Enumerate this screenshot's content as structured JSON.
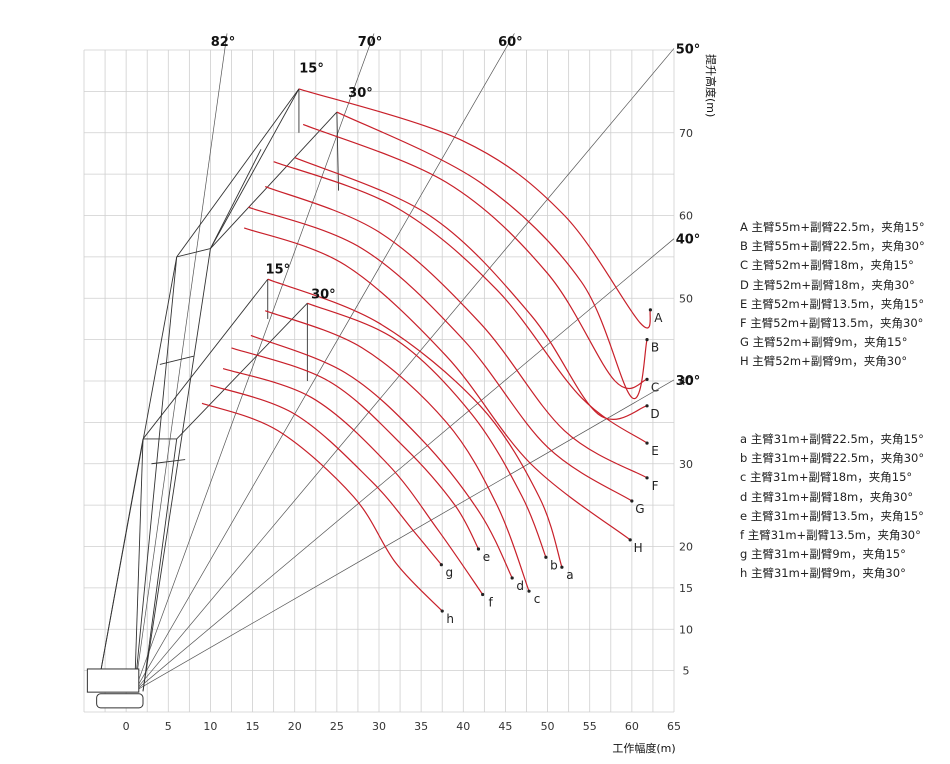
{
  "chart_data": {
    "type": "line",
    "xlabel": "工作幅度(m)",
    "ylabel": "提升高度(m)",
    "xlim": [
      -5,
      65
    ],
    "ylim": [
      0,
      80
    ],
    "x_ticks": [
      0,
      5,
      10,
      15,
      20,
      25,
      30,
      35,
      40,
      45,
      50,
      55,
      60,
      65
    ],
    "y_ticks": [
      5,
      10,
      15,
      20,
      30,
      40,
      50,
      60,
      70
    ],
    "grid": true,
    "pivot": [
      1,
      2.5
    ],
    "boom_angle_lines": [
      {
        "label": "82°",
        "angle": 82
      },
      {
        "label": "70°",
        "angle": 70
      },
      {
        "label": "60°",
        "angle": 60
      },
      {
        "label": "50°",
        "angle": 50
      },
      {
        "label": "40°",
        "angle": 40
      },
      {
        "label": "30°",
        "angle": 30
      }
    ],
    "jib_angle_labels": [
      {
        "label": "15°",
        "x": 22,
        "y": 77.3
      },
      {
        "label": "30°",
        "x": 27.8,
        "y": 74.3
      },
      {
        "label": "15°",
        "x": 18,
        "y": 53
      },
      {
        "label": "30°",
        "x": 23.4,
        "y": 50
      }
    ],
    "series": [
      {
        "name": "A",
        "points": [
          [
            20.5,
            75.3
          ],
          [
            40,
            69
          ],
          [
            52,
            60
          ],
          [
            61,
            47
          ],
          [
            62.2,
            48.6
          ]
        ]
      },
      {
        "name": "B",
        "points": [
          [
            25,
            72.5
          ],
          [
            42,
            64
          ],
          [
            54,
            52
          ],
          [
            60,
            38
          ],
          [
            61.8,
            45
          ]
        ]
      },
      {
        "name": "C",
        "points": [
          [
            21,
            71
          ],
          [
            38,
            64
          ],
          [
            50,
            53
          ],
          [
            58,
            40
          ],
          [
            61.8,
            40.2
          ]
        ]
      },
      {
        "name": "D",
        "points": [
          [
            20,
            67
          ],
          [
            36,
            60
          ],
          [
            48,
            48
          ],
          [
            56,
            36
          ],
          [
            61.8,
            37
          ]
        ]
      },
      {
        "name": "E",
        "points": [
          [
            17.5,
            66.5
          ],
          [
            32,
            61
          ],
          [
            44,
            51
          ],
          [
            54,
            38
          ],
          [
            61.8,
            32.5
          ]
        ]
      },
      {
        "name": "F",
        "points": [
          [
            16.5,
            63.5
          ],
          [
            30,
            58
          ],
          [
            42,
            47
          ],
          [
            52,
            34
          ],
          [
            61.8,
            28.3
          ]
        ]
      },
      {
        "name": "G",
        "points": [
          [
            14.5,
            61
          ],
          [
            28,
            56
          ],
          [
            40,
            45
          ],
          [
            50,
            32
          ],
          [
            60,
            25.5
          ]
        ]
      },
      {
        "name": "H",
        "points": [
          [
            14,
            58.5
          ],
          [
            26,
            54
          ],
          [
            38,
            43
          ],
          [
            48,
            30
          ],
          [
            59.8,
            20.8
          ]
        ]
      },
      {
        "name": "a",
        "points": [
          [
            16.8,
            52.3
          ],
          [
            30,
            47
          ],
          [
            42,
            37
          ],
          [
            49,
            26
          ],
          [
            51.7,
            17.5
          ]
        ]
      },
      {
        "name": "b",
        "points": [
          [
            21.5,
            49.4
          ],
          [
            32,
            45
          ],
          [
            41,
            36
          ],
          [
            47,
            26
          ],
          [
            49.8,
            18.7
          ]
        ]
      },
      {
        "name": "c",
        "points": [
          [
            16.5,
            48.5
          ],
          [
            28,
            44
          ],
          [
            38,
            35
          ],
          [
            44,
            25
          ],
          [
            47.8,
            14.6
          ]
        ]
      },
      {
        "name": "d",
        "points": [
          [
            14.8,
            45.5
          ],
          [
            26,
            41
          ],
          [
            35,
            33
          ],
          [
            42,
            24
          ],
          [
            45.8,
            16.2
          ]
        ]
      },
      {
        "name": "e",
        "points": [
          [
            12.5,
            44
          ],
          [
            24,
            40
          ],
          [
            33,
            32
          ],
          [
            39,
            25
          ],
          [
            41.8,
            19.7
          ]
        ]
      },
      {
        "name": "f",
        "points": [
          [
            11.5,
            41.5
          ],
          [
            22,
            38
          ],
          [
            31,
            30
          ],
          [
            37,
            22
          ],
          [
            42.3,
            14.2
          ]
        ]
      },
      {
        "name": "g",
        "points": [
          [
            10,
            39.5
          ],
          [
            20,
            36
          ],
          [
            29,
            28
          ],
          [
            34,
            22
          ],
          [
            37.4,
            17.8
          ]
        ]
      },
      {
        "name": "h",
        "points": [
          [
            9,
            37.3
          ],
          [
            18,
            34
          ],
          [
            27,
            26
          ],
          [
            32,
            18
          ],
          [
            37.5,
            12.2
          ]
        ]
      }
    ],
    "legend_upper": [
      "A 主臂55m+副臂22.5m，夹角15°",
      "B 主臂55m+副臂22.5m，夹角30°",
      "C 主臂52m+副臂18m，夹角15°",
      "D 主臂52m+副臂18m，夹角30°",
      "E 主臂52m+副臂13.5m，夹角15°",
      "F 主臂52m+副臂13.5m，夹角30°",
      "G 主臂52m+副臂9m，夹角15°",
      "H 主臂52m+副臂9m，夹角30°"
    ],
    "legend_lower": [
      "a 主臂31m+副臂22.5m，夹角15°",
      "b 主臂31m+副臂22.5m，夹角30°",
      "c 主臂31m+副臂18m，夹角15°",
      "d 主臂31m+副臂18m，夹角30°",
      "e 主臂31m+副臂13.5m，夹角15°",
      "f 主臂31m+副臂13.5m，夹角30°",
      "g 主臂31m+副臂9m，夹角15°",
      "h 主臂31m+副臂9m，夹角30°"
    ],
    "colors": {
      "curve": "#c8202a",
      "grid": "#cfcfcf",
      "line": "#444444"
    }
  }
}
